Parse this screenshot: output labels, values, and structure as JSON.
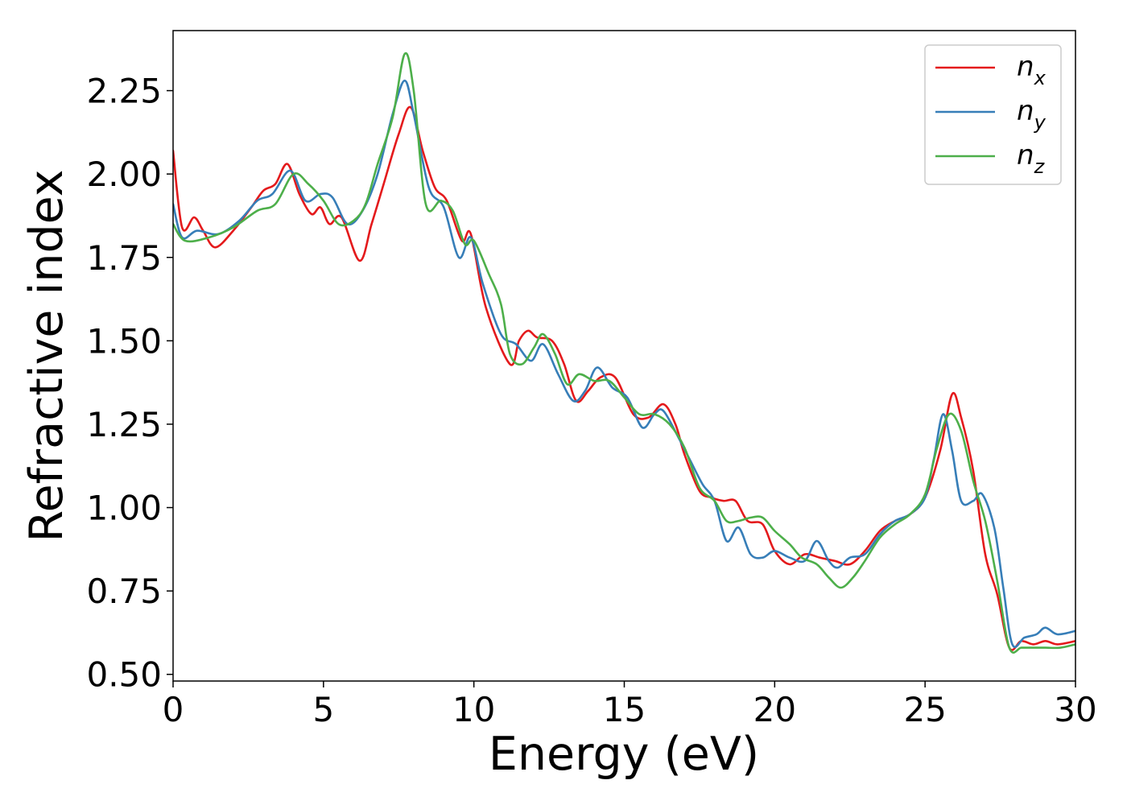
{
  "chart_data": {
    "type": "line",
    "xlabel": "Energy (eV)",
    "ylabel": "Refractive index",
    "xlim": [
      0,
      30
    ],
    "ylim": [
      0.48,
      2.43
    ],
    "xticks": [
      0,
      5,
      10,
      15,
      20,
      25,
      30
    ],
    "xtick_labels": [
      "0",
      "5",
      "10",
      "15",
      "20",
      "25",
      "30"
    ],
    "yticks": [
      0.5,
      0.75,
      1.0,
      1.25,
      1.5,
      1.75,
      2.0,
      2.25
    ],
    "ytick_labels": [
      "0.50",
      "0.75",
      "1.00",
      "1.25",
      "1.50",
      "1.75",
      "2.00",
      "2.25"
    ],
    "grid": false,
    "legend_position": "top-right",
    "series": [
      {
        "name": "n_x",
        "legend_base": "n",
        "legend_sub": "x",
        "color": "#e41a1c",
        "points": [
          [
            0,
            2.07
          ],
          [
            0.3,
            1.84
          ],
          [
            0.7,
            1.87
          ],
          [
            1.0,
            1.83
          ],
          [
            1.4,
            1.78
          ],
          [
            2.0,
            1.83
          ],
          [
            2.6,
            1.9
          ],
          [
            3.0,
            1.95
          ],
          [
            3.4,
            1.97
          ],
          [
            3.8,
            2.03
          ],
          [
            4.2,
            1.94
          ],
          [
            4.6,
            1.88
          ],
          [
            4.9,
            1.9
          ],
          [
            5.2,
            1.85
          ],
          [
            5.6,
            1.87
          ],
          [
            6.2,
            1.74
          ],
          [
            6.6,
            1.85
          ],
          [
            7.0,
            1.97
          ],
          [
            7.5,
            2.12
          ],
          [
            7.9,
            2.2
          ],
          [
            8.3,
            2.07
          ],
          [
            8.7,
            1.96
          ],
          [
            9.1,
            1.92
          ],
          [
            9.6,
            1.8
          ],
          [
            9.9,
            1.82
          ],
          [
            10.4,
            1.6
          ],
          [
            11.2,
            1.43
          ],
          [
            11.5,
            1.5
          ],
          [
            11.8,
            1.53
          ],
          [
            12.1,
            1.51
          ],
          [
            12.6,
            1.5
          ],
          [
            13.0,
            1.43
          ],
          [
            13.4,
            1.32
          ],
          [
            13.8,
            1.35
          ],
          [
            14.2,
            1.39
          ],
          [
            14.7,
            1.39
          ],
          [
            15.3,
            1.28
          ],
          [
            15.8,
            1.27
          ],
          [
            16.3,
            1.31
          ],
          [
            16.7,
            1.25
          ],
          [
            17.0,
            1.16
          ],
          [
            17.5,
            1.05
          ],
          [
            17.9,
            1.03
          ],
          [
            18.3,
            1.02
          ],
          [
            18.7,
            1.02
          ],
          [
            19.1,
            0.96
          ],
          [
            19.6,
            0.95
          ],
          [
            20.0,
            0.87
          ],
          [
            20.5,
            0.83
          ],
          [
            21.0,
            0.86
          ],
          [
            21.5,
            0.85
          ],
          [
            22.0,
            0.84
          ],
          [
            22.5,
            0.83
          ],
          [
            23.0,
            0.87
          ],
          [
            23.5,
            0.93
          ],
          [
            24.0,
            0.96
          ],
          [
            24.5,
            0.98
          ],
          [
            25.0,
            1.03
          ],
          [
            25.5,
            1.17
          ],
          [
            25.9,
            1.34
          ],
          [
            26.2,
            1.27
          ],
          [
            26.6,
            1.11
          ],
          [
            27.0,
            0.86
          ],
          [
            27.4,
            0.74
          ],
          [
            27.8,
            0.58
          ],
          [
            28.2,
            0.6
          ],
          [
            28.6,
            0.59
          ],
          [
            29.0,
            0.6
          ],
          [
            29.4,
            0.59
          ],
          [
            30.0,
            0.6
          ]
        ]
      },
      {
        "name": "n_y",
        "legend_base": "n",
        "legend_sub": "y",
        "color": "#377eb8",
        "points": [
          [
            0,
            1.91
          ],
          [
            0.3,
            1.81
          ],
          [
            0.8,
            1.83
          ],
          [
            1.5,
            1.82
          ],
          [
            2.2,
            1.86
          ],
          [
            2.8,
            1.92
          ],
          [
            3.3,
            1.94
          ],
          [
            3.9,
            2.01
          ],
          [
            4.4,
            1.92
          ],
          [
            4.9,
            1.94
          ],
          [
            5.3,
            1.93
          ],
          [
            5.8,
            1.85
          ],
          [
            6.3,
            1.89
          ],
          [
            6.8,
            2.0
          ],
          [
            7.3,
            2.18
          ],
          [
            7.7,
            2.28
          ],
          [
            8.0,
            2.18
          ],
          [
            8.5,
            1.96
          ],
          [
            9.0,
            1.9
          ],
          [
            9.5,
            1.75
          ],
          [
            9.9,
            1.81
          ],
          [
            10.3,
            1.67
          ],
          [
            10.9,
            1.52
          ],
          [
            11.4,
            1.49
          ],
          [
            11.9,
            1.44
          ],
          [
            12.3,
            1.49
          ],
          [
            12.8,
            1.4
          ],
          [
            13.3,
            1.32
          ],
          [
            13.7,
            1.35
          ],
          [
            14.1,
            1.42
          ],
          [
            14.6,
            1.36
          ],
          [
            15.1,
            1.33
          ],
          [
            15.6,
            1.24
          ],
          [
            16.0,
            1.28
          ],
          [
            16.3,
            1.29
          ],
          [
            16.8,
            1.21
          ],
          [
            17.2,
            1.14
          ],
          [
            17.6,
            1.07
          ],
          [
            18.0,
            1.02
          ],
          [
            18.4,
            0.9
          ],
          [
            18.8,
            0.94
          ],
          [
            19.2,
            0.86
          ],
          [
            19.6,
            0.85
          ],
          [
            20.0,
            0.87
          ],
          [
            20.5,
            0.85
          ],
          [
            21.0,
            0.84
          ],
          [
            21.4,
            0.9
          ],
          [
            21.8,
            0.84
          ],
          [
            22.1,
            0.82
          ],
          [
            22.5,
            0.85
          ],
          [
            23.0,
            0.86
          ],
          [
            23.5,
            0.92
          ],
          [
            24.0,
            0.96
          ],
          [
            24.5,
            0.98
          ],
          [
            25.0,
            1.03
          ],
          [
            25.3,
            1.15
          ],
          [
            25.6,
            1.28
          ],
          [
            25.9,
            1.17
          ],
          [
            26.2,
            1.02
          ],
          [
            26.6,
            1.02
          ],
          [
            26.9,
            1.04
          ],
          [
            27.3,
            0.94
          ],
          [
            27.6,
            0.76
          ],
          [
            27.9,
            0.59
          ],
          [
            28.3,
            0.61
          ],
          [
            28.7,
            0.62
          ],
          [
            29.0,
            0.64
          ],
          [
            29.4,
            0.62
          ],
          [
            30.0,
            0.63
          ]
        ]
      },
      {
        "name": "n_z",
        "legend_base": "n",
        "legend_sub": "z",
        "color": "#4daf4a",
        "points": [
          [
            0,
            1.85
          ],
          [
            0.4,
            1.8
          ],
          [
            1.2,
            1.81
          ],
          [
            2.0,
            1.84
          ],
          [
            2.8,
            1.89
          ],
          [
            3.4,
            1.91
          ],
          [
            4.0,
            2.0
          ],
          [
            4.5,
            1.97
          ],
          [
            5.0,
            1.92
          ],
          [
            5.5,
            1.85
          ],
          [
            6.0,
            1.86
          ],
          [
            6.4,
            1.91
          ],
          [
            6.8,
            2.03
          ],
          [
            7.3,
            2.17
          ],
          [
            7.7,
            2.36
          ],
          [
            8.0,
            2.25
          ],
          [
            8.4,
            1.91
          ],
          [
            8.9,
            1.92
          ],
          [
            9.3,
            1.89
          ],
          [
            9.7,
            1.79
          ],
          [
            10.0,
            1.8
          ],
          [
            10.5,
            1.7
          ],
          [
            10.9,
            1.61
          ],
          [
            11.2,
            1.46
          ],
          [
            11.6,
            1.43
          ],
          [
            12.0,
            1.48
          ],
          [
            12.3,
            1.52
          ],
          [
            12.7,
            1.46
          ],
          [
            13.1,
            1.37
          ],
          [
            13.5,
            1.4
          ],
          [
            14.0,
            1.38
          ],
          [
            14.5,
            1.38
          ],
          [
            15.0,
            1.33
          ],
          [
            15.5,
            1.28
          ],
          [
            16.0,
            1.28
          ],
          [
            16.5,
            1.25
          ],
          [
            17.0,
            1.18
          ],
          [
            17.5,
            1.06
          ],
          [
            18.0,
            1.02
          ],
          [
            18.4,
            0.96
          ],
          [
            18.8,
            0.96
          ],
          [
            19.2,
            0.97
          ],
          [
            19.6,
            0.97
          ],
          [
            20.0,
            0.93
          ],
          [
            20.5,
            0.89
          ],
          [
            20.9,
            0.85
          ],
          [
            21.4,
            0.83
          ],
          [
            21.8,
            0.79
          ],
          [
            22.2,
            0.76
          ],
          [
            22.6,
            0.79
          ],
          [
            23.0,
            0.84
          ],
          [
            23.5,
            0.91
          ],
          [
            24.0,
            0.95
          ],
          [
            24.5,
            0.98
          ],
          [
            25.0,
            1.04
          ],
          [
            25.4,
            1.18
          ],
          [
            25.8,
            1.28
          ],
          [
            26.2,
            1.23
          ],
          [
            26.6,
            1.08
          ],
          [
            27.0,
            0.96
          ],
          [
            27.4,
            0.78
          ],
          [
            27.8,
            0.58
          ],
          [
            28.2,
            0.58
          ],
          [
            28.6,
            0.58
          ],
          [
            29.0,
            0.58
          ],
          [
            29.5,
            0.58
          ],
          [
            30.0,
            0.59
          ]
        ]
      }
    ]
  }
}
